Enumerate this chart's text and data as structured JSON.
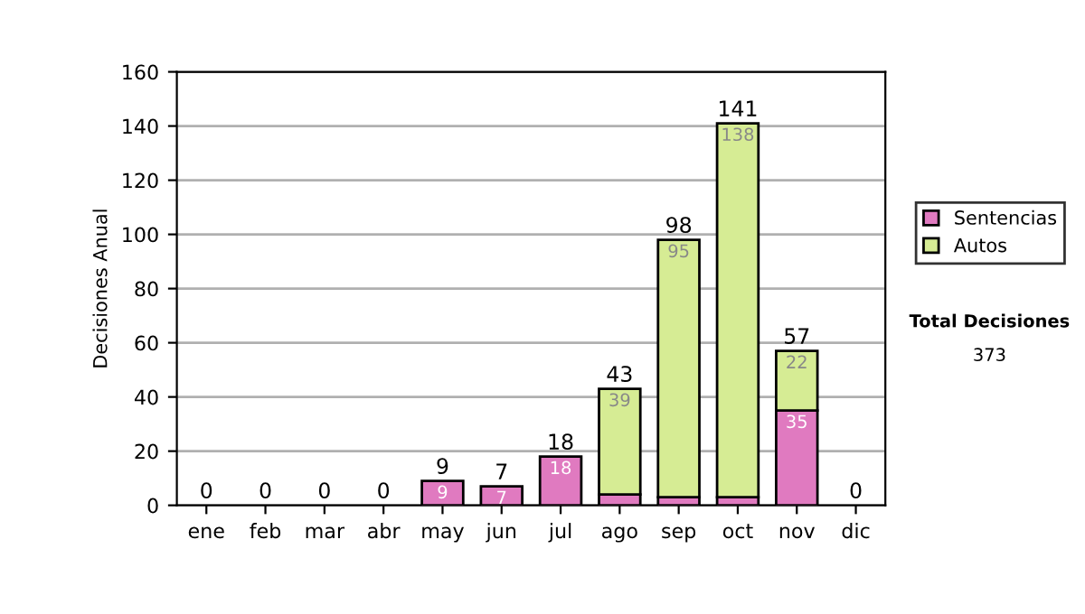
{
  "chart_data": {
    "type": "bar",
    "stacked": true,
    "ylabel": "Decisiones Anual",
    "categories": [
      "ene",
      "feb",
      "mar",
      "abr",
      "may",
      "jun",
      "jul",
      "ago",
      "sep",
      "oct",
      "nov",
      "dic"
    ],
    "series": [
      {
        "name": "Sentencias",
        "color": "#e07ac0",
        "values": [
          0,
          0,
          0,
          0,
          9,
          7,
          18,
          4,
          3,
          3,
          35,
          0
        ],
        "value_labels": [
          null,
          null,
          null,
          null,
          "9",
          "7",
          "18",
          null,
          null,
          null,
          "35",
          null
        ]
      },
      {
        "name": "Autos",
        "color": "#d6ec94",
        "values": [
          0,
          0,
          0,
          0,
          0,
          0,
          0,
          39,
          95,
          138,
          22,
          0
        ],
        "value_labels": [
          null,
          null,
          null,
          null,
          null,
          null,
          null,
          "39",
          "95",
          "138",
          "22",
          null
        ]
      }
    ],
    "totals": [
      "0",
      "0",
      "0",
      "0",
      "9",
      "7",
      "18",
      "43",
      "98",
      "141",
      "57",
      "0"
    ],
    "ylim": [
      0,
      160
    ],
    "yticks": [
      0,
      20,
      40,
      60,
      80,
      100,
      120,
      140,
      160
    ],
    "grid": "y",
    "legend": "right",
    "annotations": [
      "Total Decisiones",
      "373"
    ]
  }
}
